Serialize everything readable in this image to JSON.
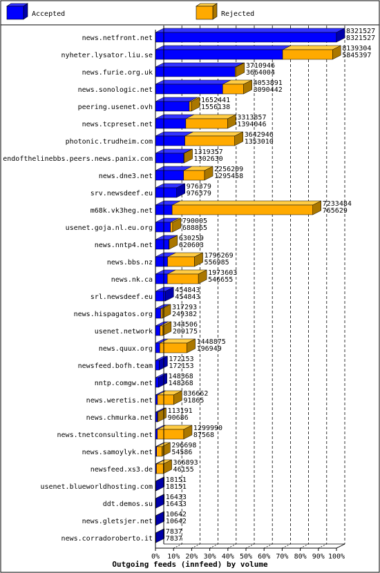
{
  "chart_data": {
    "type": "bar",
    "orientation": "horizontal",
    "stacked": true,
    "title": "Outgoing feeds (innfeed) by volume",
    "legend_position": "top",
    "xlim": [
      0,
      100
    ],
    "x_ticks": [
      "0%",
      "10%",
      "20%",
      "30%",
      "40%",
      "50%",
      "60%",
      "70%",
      "80%",
      "90%",
      "100%"
    ],
    "series": [
      {
        "name": "Accepted",
        "color": "#0000ff",
        "side": "#0000aa",
        "top": "#3333ff"
      },
      {
        "name": "Rejected",
        "color": "#ffaa00",
        "side": "#aa7700",
        "top": "#ffcc44"
      }
    ],
    "rows": [
      {
        "host": "news.netfront.net",
        "offered": "8321527",
        "accepted": "8321527",
        "o": 8321527,
        "a": 8321527
      },
      {
        "host": "nyheter.lysator.liu.se",
        "offered": "8139304",
        "accepted": "5845397",
        "o": 8139304,
        "a": 5845397
      },
      {
        "host": "news.furie.org.uk",
        "offered": "3710946",
        "accepted": "3664004",
        "o": 3710946,
        "a": 3664004
      },
      {
        "host": "news.sonologic.net",
        "offered": "4053891",
        "accepted": "3090442",
        "o": 4053891,
        "a": 3090442
      },
      {
        "host": "peering.usenet.ovh",
        "offered": "1652441",
        "accepted": "1556138",
        "o": 1652441,
        "a": 1556138
      },
      {
        "host": "news.tcpreset.net",
        "offered": "3313857",
        "accepted": "1394046",
        "o": 3313857,
        "a": 1394046
      },
      {
        "host": "photonic.trudheim.com",
        "offered": "3642946",
        "accepted": "1353010",
        "o": 3642946,
        "a": 1353010
      },
      {
        "host": "endofthelinebbs.peers.news.panix.com",
        "offered": "1319357",
        "accepted": "1302630",
        "o": 1319357,
        "a": 1302630
      },
      {
        "host": "news.dne3.net",
        "offered": "2256209",
        "accepted": "1295458",
        "o": 2256209,
        "a": 1295458
      },
      {
        "host": "srv.newsdeef.eu",
        "offered": "976379",
        "accepted": "976379",
        "o": 976379,
        "a": 976379
      },
      {
        "host": "m68k.vk3heg.net",
        "offered": "7233484",
        "accepted": "765629",
        "o": 7233484,
        "a": 765629
      },
      {
        "host": "usenet.goja.nl.eu.org",
        "offered": "790005",
        "accepted": "688865",
        "o": 790005,
        "a": 688865
      },
      {
        "host": "news.nntp4.net",
        "offered": "630259",
        "accepted": "620603",
        "o": 630259,
        "a": 620603
      },
      {
        "host": "news.bbs.nz",
        "offered": "1796269",
        "accepted": "556985",
        "o": 1796269,
        "a": 556985
      },
      {
        "host": "news.nk.ca",
        "offered": "1973603",
        "accepted": "546655",
        "o": 1973603,
        "a": 546655
      },
      {
        "host": "srl.newsdeef.eu",
        "offered": "454843",
        "accepted": "454843",
        "o": 454843,
        "a": 454843
      },
      {
        "host": "news.hispagatos.org",
        "offered": "317293",
        "accepted": "249382",
        "o": 317293,
        "a": 249382
      },
      {
        "host": "usenet.network",
        "offered": "344506",
        "accepted": "209175",
        "o": 344506,
        "a": 209175
      },
      {
        "host": "news.quux.org",
        "offered": "1448875",
        "accepted": "196949",
        "o": 1448875,
        "a": 196949
      },
      {
        "host": "newsfeed.bofh.team",
        "offered": "172153",
        "accepted": "172153",
        "o": 172153,
        "a": 172153
      },
      {
        "host": "nntp.comgw.net",
        "offered": "148368",
        "accepted": "148368",
        "o": 148368,
        "a": 148368
      },
      {
        "host": "news.weretis.net",
        "offered": "836662",
        "accepted": "91865",
        "o": 836662,
        "a": 91865
      },
      {
        "host": "news.chmurka.net",
        "offered": "113191",
        "accepted": "90686",
        "o": 113191,
        "a": 90686
      },
      {
        "host": "news.tnetconsulting.net",
        "offered": "1299990",
        "accepted": "87568",
        "o": 1299990,
        "a": 87568
      },
      {
        "host": "news.samoylyk.net",
        "offered": "296698",
        "accepted": "54586",
        "o": 296698,
        "a": 54586
      },
      {
        "host": "newsfeed.xs3.de",
        "offered": "366893",
        "accepted": "46155",
        "o": 366893,
        "a": 46155
      },
      {
        "host": "usenet.blueworldhosting.com",
        "offered": "18151",
        "accepted": "18151",
        "o": 18151,
        "a": 18151
      },
      {
        "host": "ddt.demos.su",
        "offered": "16433",
        "accepted": "16433",
        "o": 16433,
        "a": 16433
      },
      {
        "host": "news.gletsjer.net",
        "offered": "10642",
        "accepted": "10642",
        "o": 10642,
        "a": 10642
      },
      {
        "host": "news.corradoroberto.it",
        "offered": "7837",
        "accepted": "7837",
        "o": 7837,
        "a": 7837
      }
    ]
  }
}
